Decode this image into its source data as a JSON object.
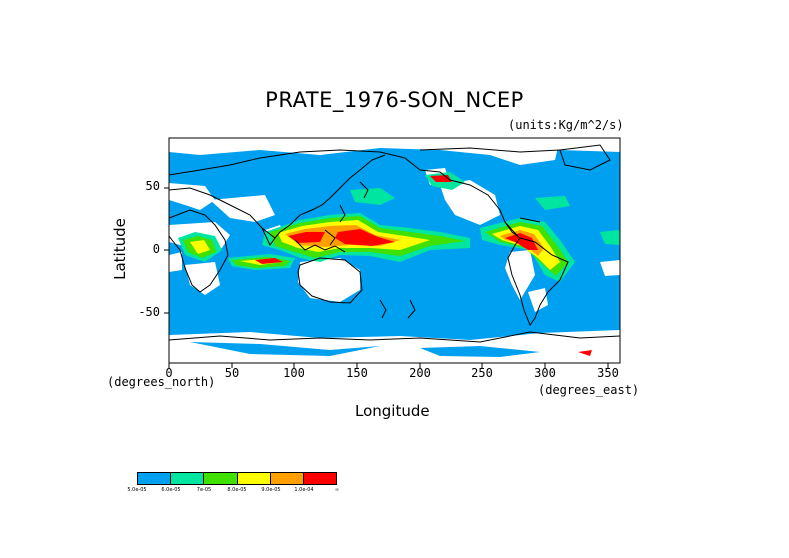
{
  "title": "PRATE_1976-SON_NCEP",
  "units": "(units:Kg/m^2/s)",
  "axes": {
    "x_label": "Longitude",
    "y_label": "Latitude",
    "x_units": "(degrees_east)",
    "y_units": "(degrees_north)",
    "x_ticks": [
      "0",
      "50",
      "100",
      "150",
      "200",
      "250",
      "300",
      "350"
    ],
    "y_ticks": [
      "50",
      "0",
      "-50"
    ],
    "x_range": [
      0,
      360
    ],
    "y_range": [
      -90,
      90
    ]
  },
  "legend": {
    "colors": [
      "#00a0f0",
      "#00e6a0",
      "#40e000",
      "#ffff00",
      "#ffa000",
      "#ff0000"
    ],
    "labels": [
      "5.0e-05",
      "6.0e-05",
      "7e-05",
      "8.0e-05",
      "9.0e-05",
      "1.0e-04",
      "∞"
    ]
  },
  "colors": {
    "background_field": "#00a0f0",
    "missing": "#ffffff",
    "coast": "#000000"
  }
}
